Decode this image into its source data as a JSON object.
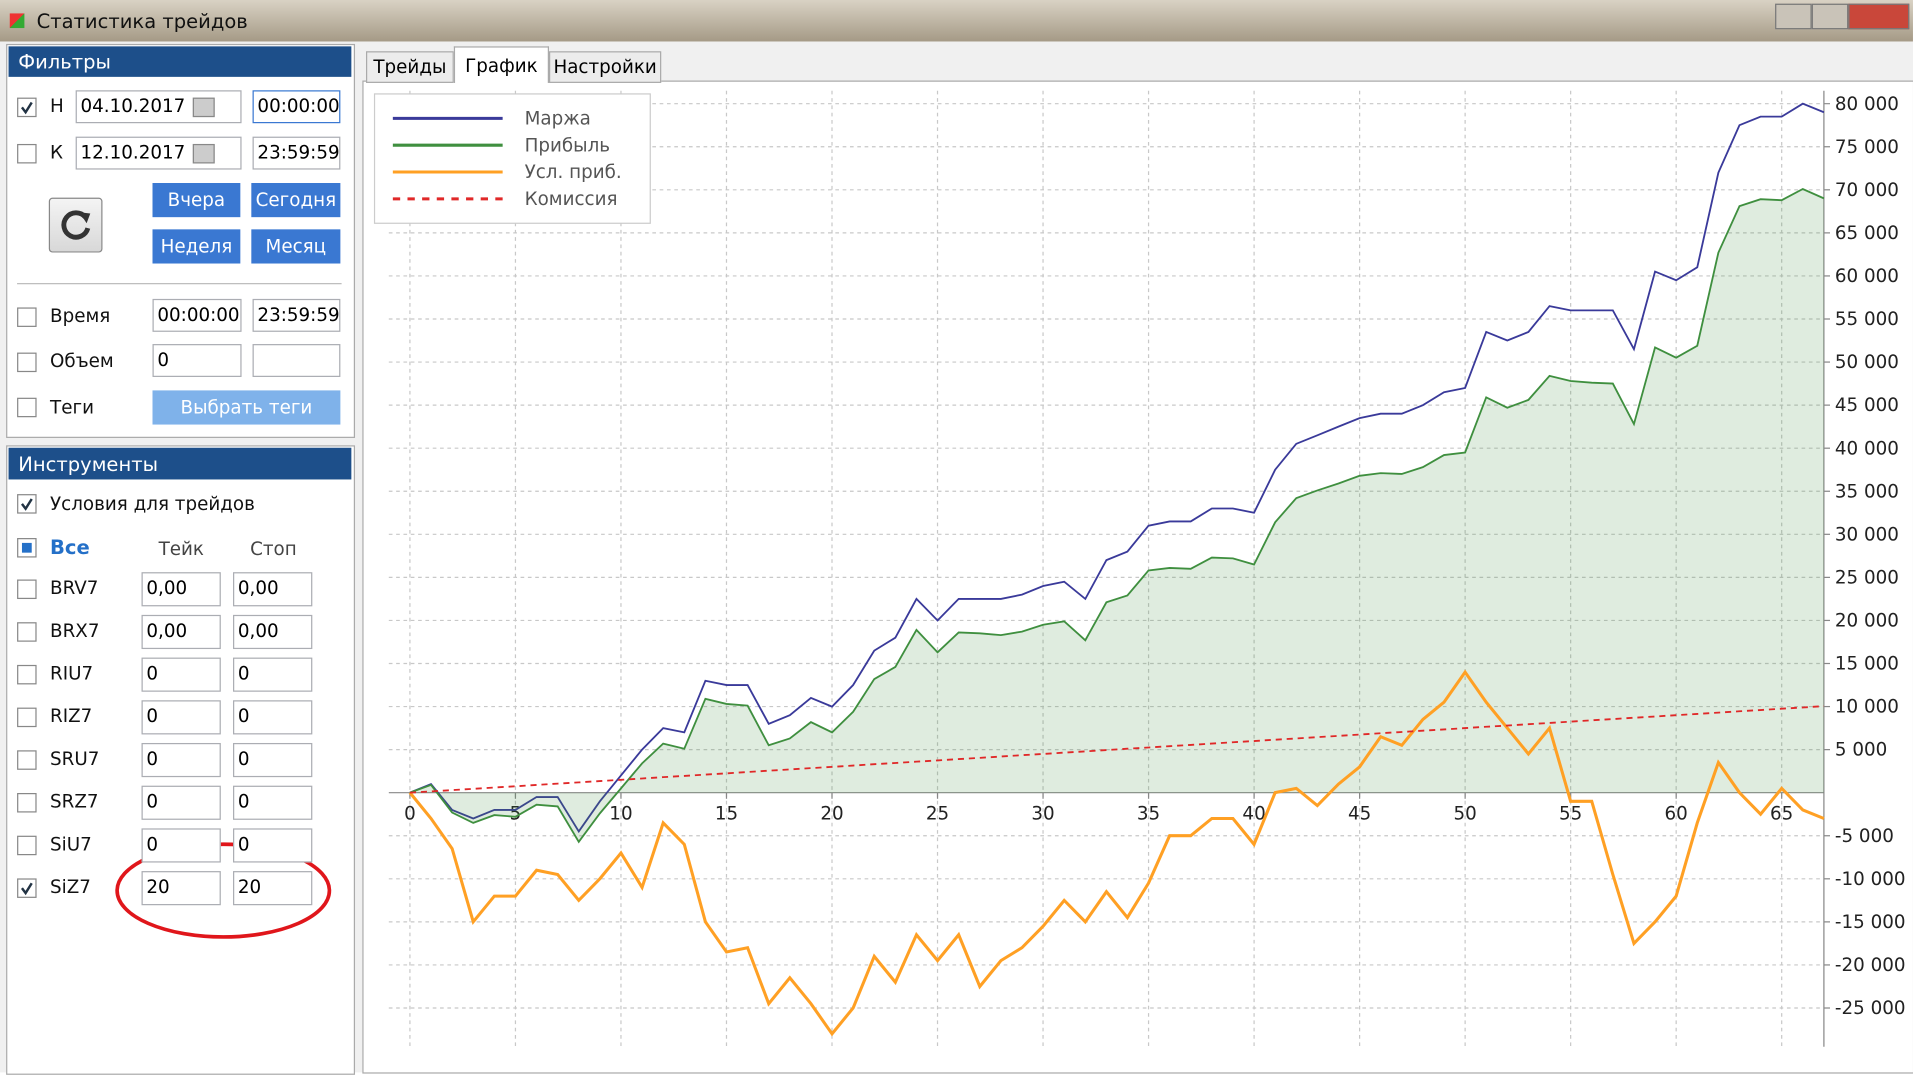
{
  "window": {
    "title": "Статистика трейдов"
  },
  "filters": {
    "header": "Фильтры",
    "start": {
      "label": "Н",
      "date": "04.10.2017",
      "time": "00:00:00",
      "checked": true
    },
    "end": {
      "label": "К",
      "date": "12.10.2017",
      "time": "23:59:59",
      "checked": false
    },
    "buttons": [
      "Вчера",
      "Сегодня",
      "Неделя",
      "Месяц"
    ],
    "time": {
      "label": "Время",
      "from": "00:00:00",
      "to": "23:59:59",
      "checked": false
    },
    "volume": {
      "label": "Объем",
      "from": "0",
      "checked": false
    },
    "tags": {
      "label": "Теги",
      "button": "Выбрать теги",
      "checked": false
    }
  },
  "instruments": {
    "header": "Инструменты",
    "conditions": "Условия для трейдов",
    "conditions_checked": true,
    "all": "Все",
    "take_header": "Тейк",
    "stop_header": "Стоп",
    "rows": [
      {
        "name": "BRV7",
        "take": "0,00",
        "stop": "0,00",
        "checked": false
      },
      {
        "name": "BRX7",
        "take": "0,00",
        "stop": "0,00",
        "checked": false
      },
      {
        "name": "RIU7",
        "take": "0",
        "stop": "0",
        "checked": false
      },
      {
        "name": "RIZ7",
        "take": "0",
        "stop": "0",
        "checked": false
      },
      {
        "name": "SRU7",
        "take": "0",
        "stop": "0",
        "checked": false
      },
      {
        "name": "SRZ7",
        "take": "0",
        "stop": "0",
        "checked": false
      },
      {
        "name": "SiU7",
        "take": "0",
        "stop": "0",
        "checked": false
      },
      {
        "name": "SiZ7",
        "take": "20",
        "stop": "20",
        "checked": true
      }
    ]
  },
  "tabs": [
    "Трейды",
    "График",
    "Настройки"
  ],
  "selected_tab": 1,
  "chart_data": {
    "type": "line",
    "x": [
      0,
      1,
      2,
      3,
      4,
      5,
      6,
      7,
      8,
      9,
      10,
      11,
      12,
      13,
      14,
      15,
      16,
      17,
      18,
      19,
      20,
      21,
      22,
      23,
      24,
      25,
      26,
      27,
      28,
      29,
      30,
      31,
      32,
      33,
      34,
      35,
      36,
      37,
      38,
      39,
      40,
      41,
      42,
      43,
      44,
      45,
      46,
      47,
      48,
      49,
      50,
      51,
      52,
      53,
      54,
      55,
      56,
      57,
      58,
      59,
      60,
      61,
      62,
      63,
      64,
      65,
      66,
      67
    ],
    "xlim": [
      -1,
      67
    ],
    "xticks": [
      0,
      5,
      10,
      15,
      20,
      25,
      30,
      35,
      40,
      45,
      50,
      55,
      60,
      65
    ],
    "ylim": [
      -29500,
      81500
    ],
    "yticks": [
      {
        "value": -25000,
        "label": "-25 000"
      },
      {
        "value": -20000,
        "label": "-20 000"
      },
      {
        "value": -15000,
        "label": "-15 000"
      },
      {
        "value": -10000,
        "label": "-10 000"
      },
      {
        "value": -5000,
        "label": "-5 000"
      },
      {
        "value": 5000,
        "label": "5 000"
      },
      {
        "value": 10000,
        "label": "10 000"
      },
      {
        "value": 15000,
        "label": "15 000"
      },
      {
        "value": 20000,
        "label": "20 000"
      },
      {
        "value": 25000,
        "label": "25 000"
      },
      {
        "value": 30000,
        "label": "30 000"
      },
      {
        "value": 35000,
        "label": "35 000"
      },
      {
        "value": 40000,
        "label": "40 000"
      },
      {
        "value": 45000,
        "label": "45 000"
      },
      {
        "value": 50000,
        "label": "50 000"
      },
      {
        "value": 55000,
        "label": "55 000"
      },
      {
        "value": 60000,
        "label": "60 000"
      },
      {
        "value": 65000,
        "label": "65 000"
      },
      {
        "value": 70000,
        "label": "70 000"
      },
      {
        "value": 75000,
        "label": "75 000"
      },
      {
        "value": 80000,
        "label": "80 000"
      }
    ],
    "grid": true,
    "legend": "top-left",
    "series": [
      {
        "name": "Маржа",
        "color": "#3a3a9a",
        "values": [
          0,
          1000,
          -2000,
          -3000,
          -2000,
          -2000,
          -500,
          -500,
          -4500,
          -1000,
          2000,
          5000,
          7500,
          7000,
          13000,
          12500,
          12500,
          8000,
          9000,
          11000,
          10000,
          12500,
          16500,
          18000,
          22500,
          20000,
          22500,
          22500,
          22500,
          23000,
          24000,
          24500,
          22500,
          27000,
          28000,
          31000,
          31500,
          31500,
          33000,
          33000,
          32500,
          37500,
          40500,
          41500,
          42500,
          43500,
          44000,
          44000,
          45000,
          46500,
          47000,
          53500,
          52500,
          53500,
          56500,
          56000,
          56000,
          56000,
          51500,
          60500,
          59500,
          61000,
          72000,
          77500,
          78500,
          78500,
          80000,
          79000
        ]
      },
      {
        "name": "Прибыль",
        "color": "#3f8f3f",
        "area": true,
        "values": [
          0,
          900,
          -2300,
          -3500,
          -2600,
          -2800,
          -1400,
          -1600,
          -5700,
          -2400,
          500,
          3400,
          5700,
          5100,
          10900,
          10300,
          10100,
          5500,
          6300,
          8200,
          7000,
          9400,
          13200,
          14600,
          18900,
          16300,
          18600,
          18500,
          18300,
          18700,
          19500,
          19900,
          17700,
          22100,
          22900,
          25800,
          26100,
          26000,
          27300,
          27200,
          26500,
          31400,
          34200,
          35100,
          35900,
          36800,
          37100,
          37000,
          37800,
          39200,
          39500,
          45900,
          44700,
          45600,
          48400,
          47800,
          47600,
          47500,
          42800,
          51700,
          50500,
          51900,
          62700,
          68100,
          68900,
          68800,
          70100,
          69000
        ]
      },
      {
        "name": "Усл. приб.",
        "color": "#ffa024",
        "values": [
          0,
          -3000,
          -6500,
          -15000,
          -12000,
          -12000,
          -9000,
          -9500,
          -12500,
          -10000,
          -7000,
          -11000,
          -3500,
          -6000,
          -15000,
          -18500,
          -18000,
          -24500,
          -21500,
          -24500,
          -28000,
          -25000,
          -19000,
          -22000,
          -16500,
          -19500,
          -16500,
          -22500,
          -19500,
          -18000,
          -15500,
          -12500,
          -15000,
          -11500,
          -14500,
          -10500,
          -5000,
          -5000,
          -3000,
          -3000,
          -6000,
          0,
          500,
          -1500,
          1000,
          3000,
          6500,
          5500,
          8500,
          10500,
          14000,
          10500,
          7500,
          4500,
          7500,
          -1000,
          -1000,
          -9500,
          -17500,
          -15000,
          -12000,
          -3500,
          3500,
          0,
          -2500,
          500,
          -2000,
          -3000
        ]
      },
      {
        "name": "Комиссия",
        "color": "#e02828",
        "dashed": true,
        "values": [
          0,
          150,
          300,
          450,
          600,
          750,
          900,
          1050,
          1200,
          1350,
          1500,
          1650,
          1800,
          1950,
          2100,
          2250,
          2400,
          2550,
          2700,
          2850,
          3000,
          3150,
          3300,
          3450,
          3600,
          3750,
          3900,
          4050,
          4200,
          4350,
          4500,
          4650,
          4800,
          4950,
          5100,
          5250,
          5400,
          5550,
          5700,
          5850,
          6000,
          6150,
          6300,
          6450,
          6600,
          6750,
          6900,
          7050,
          7200,
          7350,
          7500,
          7650,
          7800,
          7950,
          8100,
          8250,
          8400,
          8550,
          8700,
          8850,
          9000,
          9150,
          9300,
          9450,
          9600,
          9750,
          9900,
          10050
        ]
      }
    ]
  }
}
